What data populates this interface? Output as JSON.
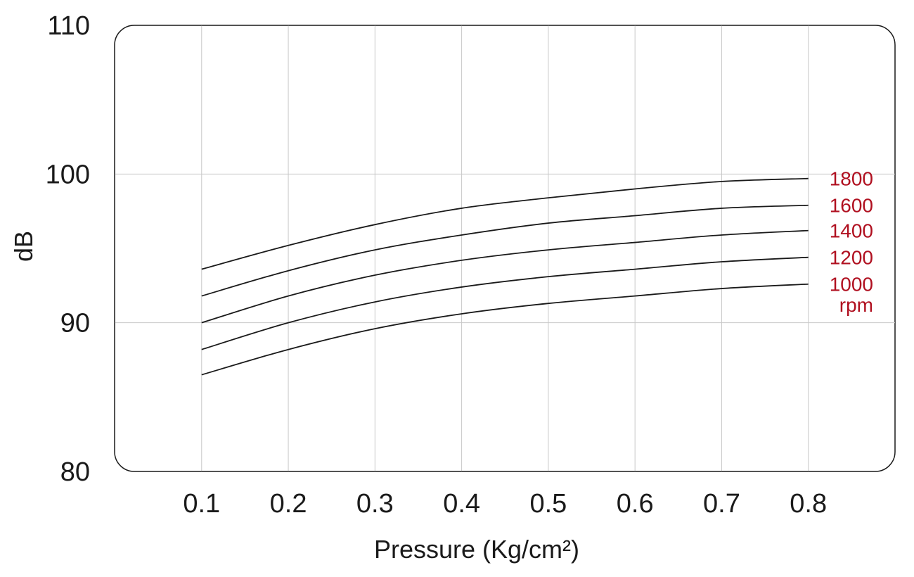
{
  "chart_data": {
    "type": "line",
    "xlabel": "Pressure (Kg/cm²)",
    "ylabel": "dB",
    "xlim": [
      0,
      0.9
    ],
    "ylim": [
      80,
      110
    ],
    "x_ticks": [
      "0.1",
      "0.2",
      "0.3",
      "0.4",
      "0.5",
      "0.6",
      "0.7",
      "0.8"
    ],
    "y_ticks": [
      "80",
      "90",
      "100",
      "110"
    ],
    "grid": true,
    "label_color": "#b01020",
    "line_color": "#1a1a1a",
    "grid_color": "#c8c8c8",
    "x": [
      0.1,
      0.2,
      0.3,
      0.4,
      0.5,
      0.6,
      0.7,
      0.8
    ],
    "series": [
      {
        "name": "1800",
        "values": [
          93.6,
          95.2,
          96.6,
          97.7,
          98.4,
          99.0,
          99.5,
          99.7
        ]
      },
      {
        "name": "1600",
        "values": [
          91.8,
          93.5,
          94.9,
          95.9,
          96.7,
          97.2,
          97.7,
          97.9
        ]
      },
      {
        "name": "1400",
        "values": [
          90.0,
          91.8,
          93.2,
          94.2,
          94.9,
          95.4,
          95.9,
          96.2
        ]
      },
      {
        "name": "1200",
        "values": [
          88.2,
          90.0,
          91.4,
          92.4,
          93.1,
          93.6,
          94.1,
          94.4
        ]
      },
      {
        "name": "1000",
        "values": [
          86.5,
          88.2,
          89.6,
          90.6,
          91.3,
          91.8,
          92.3,
          92.6
        ]
      }
    ],
    "unit_label": "rpm"
  }
}
